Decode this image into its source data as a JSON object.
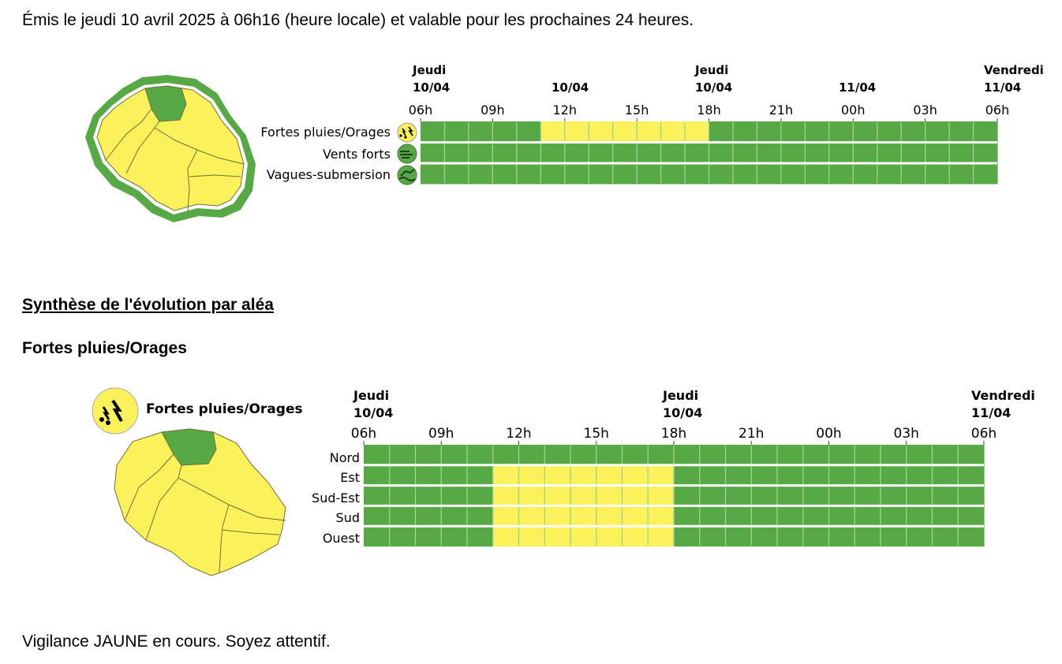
{
  "header": {
    "issued_text": "Émis le jeudi 10 avril 2025 à 06h16 (heure locale) et valable pour les prochaines 24 heures."
  },
  "overview": {
    "day_labels": [
      {
        "day": "Jeudi",
        "date": "10/04"
      },
      {
        "day": "",
        "date": "10/04"
      },
      {
        "day": "Jeudi",
        "date": "10/04"
      },
      {
        "day": "",
        "date": "11/04"
      },
      {
        "day": "Vendredi",
        "date": "11/04"
      }
    ],
    "hour_labels": [
      "06h",
      "09h",
      "12h",
      "15h",
      "18h",
      "21h",
      "00h",
      "03h",
      "06h"
    ],
    "rows": [
      {
        "label": "Fortes pluies/Orages",
        "icon": "thunderstorm-icon",
        "icon_color": "#fbf15b",
        "cells": [
          "green",
          "green",
          "green",
          "green",
          "green",
          "yellow",
          "yellow",
          "yellow",
          "yellow",
          "yellow",
          "yellow",
          "yellow",
          "green",
          "green",
          "green",
          "green",
          "green",
          "green",
          "green",
          "green",
          "green",
          "green",
          "green",
          "green"
        ]
      },
      {
        "label": "Vents forts",
        "icon": "wind-icon",
        "icon_color": "#57a946",
        "cells": [
          "green",
          "green",
          "green",
          "green",
          "green",
          "green",
          "green",
          "green",
          "green",
          "green",
          "green",
          "green",
          "green",
          "green",
          "green",
          "green",
          "green",
          "green",
          "green",
          "green",
          "green",
          "green",
          "green",
          "green"
        ]
      },
      {
        "label": "Vagues-submersion",
        "icon": "waves-icon",
        "icon_color": "#57a946",
        "cells": [
          "green",
          "green",
          "green",
          "green",
          "green",
          "green",
          "green",
          "green",
          "green",
          "green",
          "green",
          "green",
          "green",
          "green",
          "green",
          "green",
          "green",
          "green",
          "green",
          "green",
          "green",
          "green",
          "green",
          "green"
        ]
      }
    ]
  },
  "synthesis": {
    "title": "Synthèse de l'évolution par aléa",
    "hazard_heading": "Fortes pluies/Orages",
    "legend_label": "Fortes pluies/Orages",
    "day_labels": [
      {
        "day": "Jeudi",
        "date": "10/04"
      },
      {
        "day": "Jeudi",
        "date": "10/04"
      },
      {
        "day": "Vendredi",
        "date": "11/04"
      }
    ],
    "hour_labels": [
      "06h",
      "09h",
      "12h",
      "15h",
      "18h",
      "21h",
      "00h",
      "03h",
      "06h"
    ],
    "rows": [
      {
        "label": "Nord",
        "cells": [
          "green",
          "green",
          "green",
          "green",
          "green",
          "green",
          "green",
          "green",
          "green",
          "green",
          "green",
          "green",
          "green",
          "green",
          "green",
          "green",
          "green",
          "green",
          "green",
          "green",
          "green",
          "green",
          "green",
          "green"
        ]
      },
      {
        "label": "Est",
        "cells": [
          "green",
          "green",
          "green",
          "green",
          "green",
          "yellow",
          "yellow",
          "yellow",
          "yellow",
          "yellow",
          "yellow",
          "yellow",
          "green",
          "green",
          "green",
          "green",
          "green",
          "green",
          "green",
          "green",
          "green",
          "green",
          "green",
          "green"
        ]
      },
      {
        "label": "Sud-Est",
        "cells": [
          "green",
          "green",
          "green",
          "green",
          "green",
          "yellow",
          "yellow",
          "yellow",
          "yellow",
          "yellow",
          "yellow",
          "yellow",
          "green",
          "green",
          "green",
          "green",
          "green",
          "green",
          "green",
          "green",
          "green",
          "green",
          "green",
          "green"
        ]
      },
      {
        "label": "Sud",
        "cells": [
          "green",
          "green",
          "green",
          "green",
          "green",
          "yellow",
          "yellow",
          "yellow",
          "yellow",
          "yellow",
          "yellow",
          "yellow",
          "green",
          "green",
          "green",
          "green",
          "green",
          "green",
          "green",
          "green",
          "green",
          "green",
          "green",
          "green"
        ]
      },
      {
        "label": "Ouest",
        "cells": [
          "green",
          "green",
          "green",
          "green",
          "green",
          "yellow",
          "yellow",
          "yellow",
          "yellow",
          "yellow",
          "yellow",
          "yellow",
          "green",
          "green",
          "green",
          "green",
          "green",
          "green",
          "green",
          "green",
          "green",
          "green",
          "green",
          "green"
        ]
      }
    ]
  },
  "colors": {
    "green": "#57a946",
    "yellow": "#fbf15b",
    "map_stroke": "#6f6f3a"
  },
  "footer": {
    "status_text": "Vigilance JAUNE en cours. Soyez attentif."
  }
}
